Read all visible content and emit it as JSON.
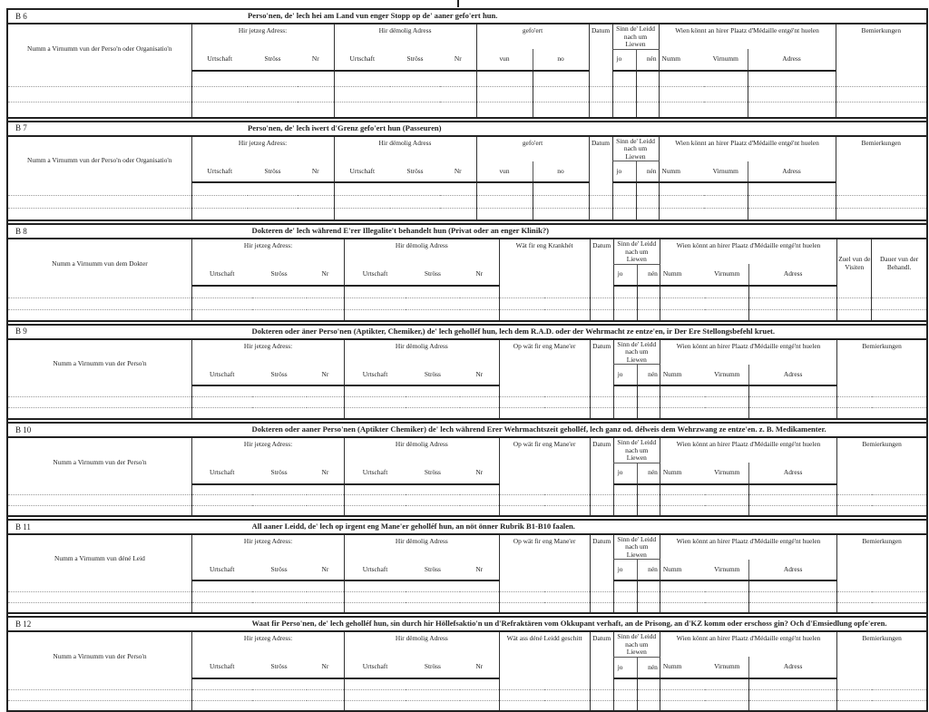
{
  "common": {
    "current_address": "Hir jetzeg Adress:",
    "former_address": "Hir dëmolig Adress",
    "urtschaft": "Urtschaft",
    "stross": "Ströss",
    "nr": "Nr",
    "datum": "Datum",
    "sinn": "Sinn de' Leidd nach um Liewen",
    "jo": "jo",
    "nen": "nén",
    "medal": "Wien könnt an hirer Plaatz d'Médaille entgé'nt huelen",
    "numm": "Numm",
    "virnumm": "Virnumm",
    "adress": "Adress",
    "remarks": "Bemierkungen"
  },
  "sections": [
    {
      "code": "B 6",
      "title": "Perso'nen, de' lech hei am Land vun enger Stopp op de' aaner gefo'ert hun.",
      "name_header": "Numm a Virnumm vun der Perso'n oder Organisatio'n",
      "variant": "transport",
      "col4": {
        "label": "gefo'ert",
        "vun": "vun",
        "no": "no"
      }
    },
    {
      "code": "B 7",
      "title": "Perso'nen, de' lech iwert d'Grenz gefo'ert hun (Passeuren)",
      "name_header": "Numm a Virnumm vun der Perso'n oder Organisatio'n",
      "variant": "transport",
      "col4": {
        "label": "gefo'ert",
        "vun": "vun",
        "no": "no"
      }
    },
    {
      "code": "B 8",
      "title": "Dokteren de' lech während E'rer Illegalite't behandelt hun (Privat oder an enger Klinik?)",
      "name_header": "Numm a Virnumm vun dem Dokter",
      "variant": "doctor",
      "col4": {
        "label": "Wät fir eng Krankhét"
      },
      "extra": {
        "visits": "Zuel vun de Visiten",
        "duration": "Dauer vun der Behandl."
      }
    },
    {
      "code": "B 9",
      "title": "Dokteren oder äner Perso'nen (Aptikter, Chemiker,) de' lech geholléf hun, lech dem R.A.D. oder der Wehrmacht ze entze'en, ir Der Ere Stellongsbefehl kruet.",
      "name_header": "Numm a Virnumm vun der Perso'n",
      "variant": "other",
      "col4": {
        "label": "Op wät fir eng Mane'er"
      }
    },
    {
      "code": "B 10",
      "title": "Dokteren oder aaner Perso'nen (Aptikter Chemiker) de' lech während Erer Wehrmachtszeit geholléf, lech ganz od. délweis dem Wehrzwang ze entze'en. z. B. Medikamenter.",
      "name_header": "Numm a Virnumm vun der Perso'n",
      "variant": "other",
      "col4": {
        "label": "Op wät fir eng Mane'er"
      }
    },
    {
      "code": "B 11",
      "title": "All aaner Leidd, de' lech op irgent eng Mane'er geholléf hun, an nöt önner Rubrik B1-B10 faalen.",
      "name_header": "Numm a Virnumm vun déné Leid",
      "variant": "other",
      "col4": {
        "label": "Op wät fir eng Mane'er"
      }
    },
    {
      "code": "B 12",
      "title": "Waat fir Perso'nen, de' lech geholléf hun, sin durch hir Höllefsaktio'n un d'Refraktären vom Okkupant verhaft, an de Prisong, an d'KZ komm oder erschoss gin? Och d'Emsiedlung opfe'eren.",
      "name_header": "Numm a Virnumm vun der Perso'n",
      "variant": "other",
      "col4": {
        "label": "Wät ass déné Leidd geschitt"
      }
    }
  ]
}
